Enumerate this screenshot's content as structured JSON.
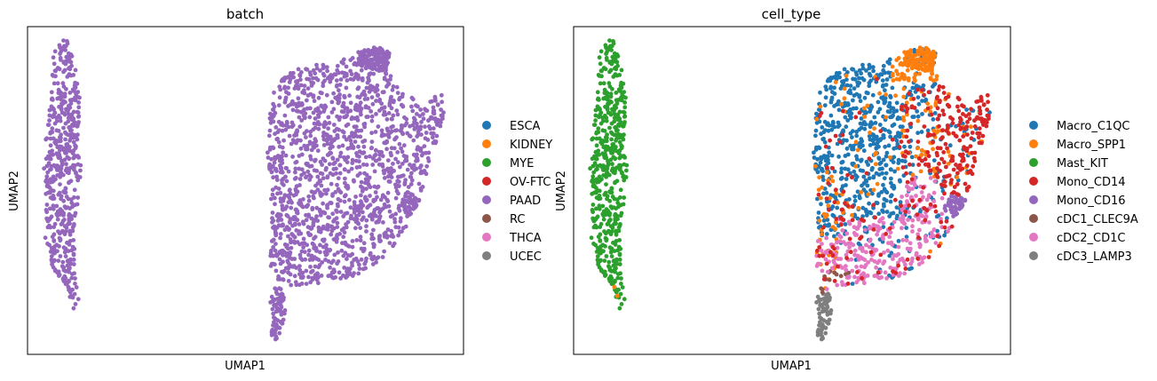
{
  "colors": {
    "blue": "#1f77b4",
    "orange": "#ff7f0e",
    "green": "#2ca02c",
    "red": "#d62728",
    "purple": "#9467bd",
    "brown": "#8c564b",
    "pink": "#e377c2",
    "gray": "#7f7f7f"
  },
  "chart_data": [
    {
      "type": "scatter",
      "title": "batch",
      "xlabel": "UMAP1",
      "ylabel": "UMAP2",
      "ticks": "none",
      "grid": false,
      "legend_placement": "right",
      "legend": [
        "ESCA",
        "KIDNEY",
        "MYE",
        "OV-FTC",
        "PAAD",
        "RC",
        "THCA",
        "UCEC"
      ],
      "legend_colors": [
        "#1f77b4",
        "#ff7f0e",
        "#2ca02c",
        "#d62728",
        "#9467bd",
        "#8c564b",
        "#e377c2",
        "#7f7f7f"
      ],
      "point_category": "PAAD",
      "approx_point_count": 2400
    },
    {
      "type": "scatter",
      "title": "cell_type",
      "xlabel": "UMAP1",
      "ylabel": "UMAP2",
      "ticks": "none",
      "grid": false,
      "legend_placement": "right",
      "legend": [
        "Macro_C1QC",
        "Macro_SPP1",
        "Mast_KIT",
        "Mono_CD14",
        "Mono_CD16",
        "cDC1_CLEC9A",
        "cDC2_CD1C",
        "cDC3_LAMP3"
      ],
      "legend_colors": [
        "#1f77b4",
        "#ff7f0e",
        "#2ca02c",
        "#d62728",
        "#9467bd",
        "#8c564b",
        "#e377c2",
        "#7f7f7f"
      ],
      "approx_point_count": 2400
    }
  ]
}
